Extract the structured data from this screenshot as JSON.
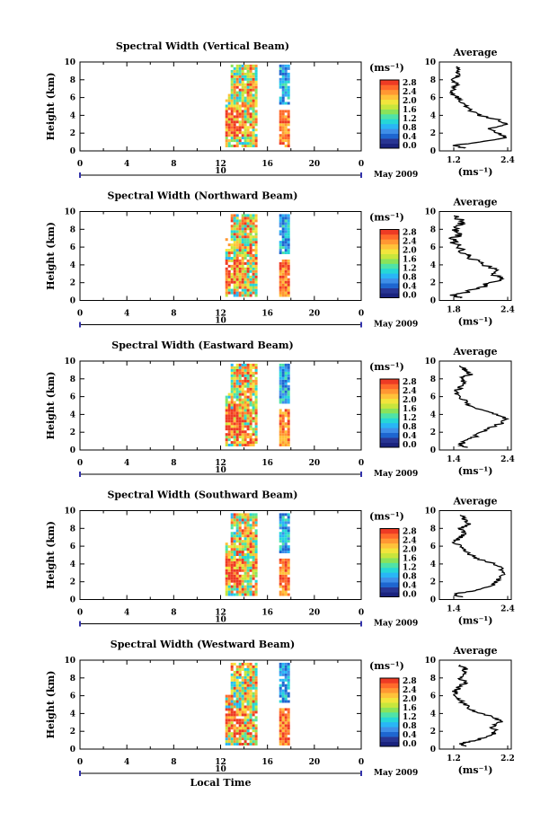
{
  "figure": {
    "x_axis_label": "Local Time",
    "date_label": "May 2009",
    "date_day": "10"
  },
  "colorbar": {
    "unit_label": "(ms⁻¹)",
    "tick_labels": [
      "2.8",
      "2.4",
      "2.0",
      "1.6",
      "1.2",
      "0.8",
      "0.4",
      "0.0"
    ],
    "range": [
      0.0,
      2.8
    ],
    "colors": [
      "#1a237e",
      "#283593",
      "#1e66d0",
      "#3f8fe8",
      "#29b6f6",
      "#26d7d7",
      "#4fe3a8",
      "#8ae35a",
      "#c8e63c",
      "#f2e53c",
      "#ffc23a",
      "#ff9833",
      "#ff6a2b",
      "#ee3b24"
    ]
  },
  "chart_data": [
    {
      "type": "heatmap",
      "title": "Spectral Width (Vertical Beam)",
      "ylabel": "Height (km)",
      "xlim": [
        0,
        24
      ],
      "ylim": [
        0,
        10
      ],
      "x_ticks": [
        "0",
        "4",
        "8",
        "12",
        "16",
        "20",
        "0"
      ],
      "y_ticks": [
        "0",
        "2",
        "4",
        "6",
        "8",
        "10"
      ],
      "data_columns": [
        {
          "t_start": 12.4,
          "t_end": 14.0,
          "h_max": 9.6,
          "value_range": [
            0.8,
            2.8
          ]
        },
        {
          "t_start": 14.0,
          "t_end": 15.0,
          "h_max": 9.6,
          "value_range": [
            1.0,
            2.8
          ]
        },
        {
          "t_start": 17.0,
          "t_end": 17.9,
          "h_max": 9.6,
          "value_range": [
            0.4,
            2.8
          ]
        }
      ],
      "average_profile": {
        "title": "Average",
        "xlabel": "(ms⁻¹)",
        "x_ticks": [
          "1.2",
          "2.4"
        ],
        "y_ticks": [
          "0",
          "2",
          "4",
          "6",
          "8",
          "10"
        ],
        "xlim": [
          1.0,
          2.6
        ],
        "ylim": [
          0,
          10
        ],
        "heights": [
          0.3,
          0.6,
          1.0,
          1.5,
          2.0,
          2.5,
          3.0,
          3.5,
          4.0,
          4.5,
          5.0,
          5.5,
          6.0,
          6.5,
          7.0,
          7.5,
          8.0,
          8.5,
          9.0,
          9.5
        ],
        "values": [
          1.6,
          1.3,
          1.9,
          2.5,
          2.3,
          2.1,
          2.5,
          2.3,
          1.9,
          1.7,
          1.6,
          1.5,
          1.4,
          1.3,
          1.3,
          1.4,
          1.3,
          1.4,
          1.4,
          1.4
        ]
      }
    },
    {
      "type": "heatmap",
      "title": "Spectral Width (Northward Beam)",
      "ylabel": "Height (km)",
      "xlim": [
        0,
        24
      ],
      "ylim": [
        0,
        10
      ],
      "x_ticks": [
        "0",
        "4",
        "8",
        "12",
        "16",
        "20",
        "0"
      ],
      "y_ticks": [
        "0",
        "2",
        "4",
        "6",
        "8",
        "10"
      ],
      "data_columns": [
        {
          "t_start": 12.4,
          "t_end": 14.0,
          "h_max": 9.6,
          "value_range": [
            0.8,
            2.8
          ]
        },
        {
          "t_start": 14.0,
          "t_end": 15.0,
          "h_max": 9.6,
          "value_range": [
            1.0,
            2.8
          ]
        },
        {
          "t_start": 17.0,
          "t_end": 17.9,
          "h_max": 9.6,
          "value_range": [
            0.4,
            2.8
          ]
        }
      ],
      "average_profile": {
        "title": "Average",
        "xlabel": "(ms⁻¹)",
        "x_ticks": [
          "1.8",
          "2.4"
        ],
        "y_ticks": [
          "0",
          "2",
          "4",
          "6",
          "8",
          "10"
        ],
        "xlim": [
          1.6,
          2.6
        ],
        "ylim": [
          0,
          10
        ],
        "heights": [
          0.3,
          0.6,
          1.0,
          1.5,
          2.0,
          2.5,
          3.0,
          3.5,
          4.0,
          4.5,
          5.0,
          5.5,
          6.0,
          6.5,
          7.0,
          7.5,
          8.0,
          8.5,
          9.0,
          9.5
        ],
        "values": [
          1.9,
          1.8,
          2.0,
          2.2,
          2.3,
          2.5,
          2.3,
          2.4,
          2.2,
          2.1,
          2.0,
          1.9,
          1.9,
          1.8,
          1.8,
          1.9,
          1.8,
          1.9,
          1.9,
          1.8
        ]
      }
    },
    {
      "type": "heatmap",
      "title": "Spectral Width (Eastward Beam)",
      "ylabel": "Height (km)",
      "xlim": [
        0,
        24
      ],
      "ylim": [
        0,
        10
      ],
      "x_ticks": [
        "0",
        "4",
        "8",
        "12",
        "16",
        "20",
        "0"
      ],
      "y_ticks": [
        "0",
        "2",
        "4",
        "6",
        "8",
        "10"
      ],
      "data_columns": [
        {
          "t_start": 12.4,
          "t_end": 14.0,
          "h_max": 9.6,
          "value_range": [
            0.8,
            2.8
          ]
        },
        {
          "t_start": 14.0,
          "t_end": 15.0,
          "h_max": 9.6,
          "value_range": [
            1.0,
            2.8
          ]
        },
        {
          "t_start": 17.0,
          "t_end": 17.9,
          "h_max": 9.6,
          "value_range": [
            0.4,
            2.8
          ]
        }
      ],
      "average_profile": {
        "title": "Average",
        "xlabel": "(ms⁻¹)",
        "x_ticks": [
          "1.4",
          "2.4"
        ],
        "y_ticks": [
          "0",
          "2",
          "4",
          "6",
          "8",
          "10"
        ],
        "xlim": [
          1.2,
          2.6
        ],
        "ylim": [
          0,
          10
        ],
        "heights": [
          0.3,
          0.6,
          1.0,
          1.5,
          2.0,
          2.5,
          3.0,
          3.5,
          4.0,
          4.5,
          5.0,
          5.5,
          6.0,
          6.5,
          7.0,
          7.5,
          8.0,
          8.5,
          9.0,
          9.5
        ],
        "values": [
          1.7,
          1.6,
          1.7,
          1.9,
          2.0,
          2.2,
          2.4,
          2.5,
          2.3,
          2.0,
          1.8,
          1.7,
          1.6,
          1.5,
          1.6,
          1.7,
          1.6,
          1.8,
          1.7,
          1.6
        ]
      }
    },
    {
      "type": "heatmap",
      "title": "Spectral Width (Southward Beam)",
      "ylabel": "Height (km)",
      "xlim": [
        0,
        24
      ],
      "ylim": [
        0,
        10
      ],
      "x_ticks": [
        "0",
        "4",
        "8",
        "12",
        "16",
        "20",
        "0"
      ],
      "y_ticks": [
        "0",
        "2",
        "4",
        "6",
        "8",
        "10"
      ],
      "data_columns": [
        {
          "t_start": 12.4,
          "t_end": 14.0,
          "h_max": 9.6,
          "value_range": [
            0.8,
            2.8
          ]
        },
        {
          "t_start": 14.0,
          "t_end": 15.0,
          "h_max": 9.6,
          "value_range": [
            1.0,
            2.8
          ]
        },
        {
          "t_start": 17.0,
          "t_end": 17.9,
          "h_max": 9.6,
          "value_range": [
            0.4,
            2.8
          ]
        }
      ],
      "average_profile": {
        "title": "Average",
        "xlabel": "(ms⁻¹)",
        "x_ticks": [
          "1.4",
          "2.4"
        ],
        "y_ticks": [
          "0",
          "2",
          "4",
          "6",
          "8",
          "10"
        ],
        "xlim": [
          1.2,
          2.6
        ],
        "ylim": [
          0,
          10
        ],
        "heights": [
          0.3,
          0.6,
          1.0,
          1.5,
          2.0,
          2.5,
          3.0,
          3.5,
          4.0,
          4.5,
          5.0,
          5.5,
          6.0,
          6.5,
          7.0,
          7.5,
          8.0,
          8.5,
          9.0,
          9.5
        ],
        "values": [
          1.6,
          1.5,
          1.9,
          2.2,
          2.3,
          2.4,
          2.5,
          2.4,
          2.3,
          2.0,
          1.8,
          1.7,
          1.6,
          1.5,
          1.6,
          1.7,
          1.6,
          1.8,
          1.7,
          1.6
        ]
      }
    },
    {
      "type": "heatmap",
      "title": "Spectral Width (Westward Beam)",
      "ylabel": "Height (km)",
      "xlim": [
        0,
        24
      ],
      "ylim": [
        0,
        10
      ],
      "x_ticks": [
        "0",
        "4",
        "8",
        "12",
        "16",
        "20",
        "0"
      ],
      "y_ticks": [
        "0",
        "2",
        "4",
        "6",
        "8",
        "10"
      ],
      "data_columns": [
        {
          "t_start": 12.4,
          "t_end": 14.0,
          "h_max": 9.6,
          "value_range": [
            0.8,
            2.8
          ]
        },
        {
          "t_start": 14.0,
          "t_end": 15.0,
          "h_max": 9.6,
          "value_range": [
            1.0,
            2.8
          ]
        },
        {
          "t_start": 17.0,
          "t_end": 17.9,
          "h_max": 9.6,
          "value_range": [
            0.4,
            2.8
          ]
        }
      ],
      "average_profile": {
        "title": "Average",
        "xlabel": "(ms⁻¹)",
        "x_ticks": [
          "1.2",
          "2.2"
        ],
        "y_ticks": [
          "0",
          "2",
          "4",
          "6",
          "8",
          "10"
        ],
        "xlim": [
          1.0,
          2.4
        ],
        "ylim": [
          0,
          10
        ],
        "heights": [
          0.3,
          0.6,
          1.0,
          1.5,
          2.0,
          2.5,
          3.0,
          3.5,
          4.0,
          4.5,
          5.0,
          5.5,
          6.0,
          6.5,
          7.0,
          7.5,
          8.0,
          8.5,
          9.0,
          9.5
        ],
        "values": [
          1.5,
          1.4,
          1.7,
          2.0,
          2.1,
          2.0,
          2.2,
          2.1,
          1.8,
          1.6,
          1.5,
          1.4,
          1.3,
          1.3,
          1.4,
          1.5,
          1.4,
          1.5,
          1.5,
          1.4
        ]
      }
    }
  ]
}
